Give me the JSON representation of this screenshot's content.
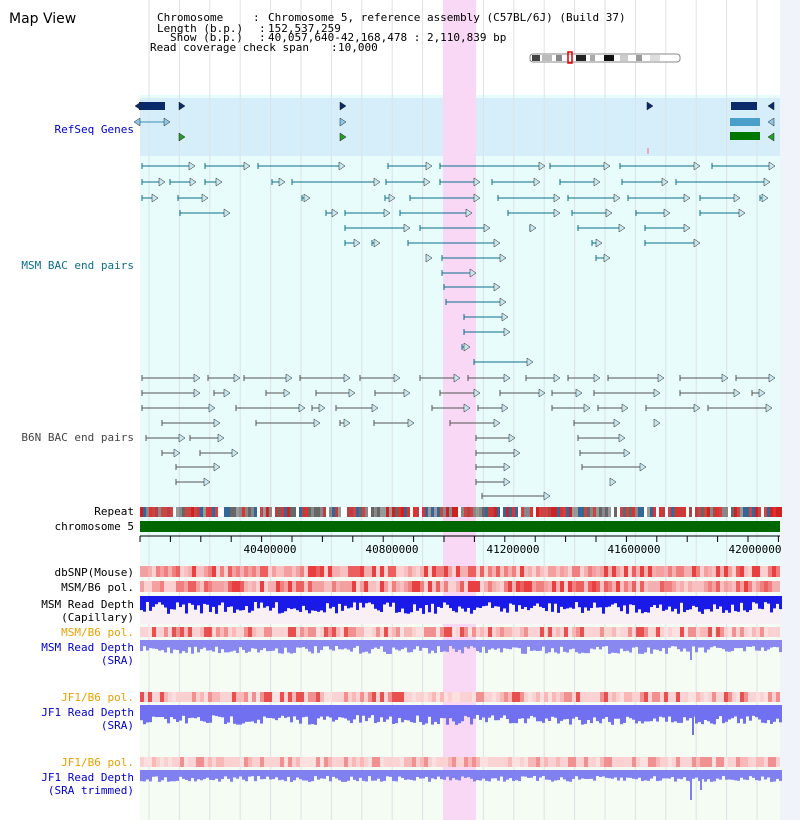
{
  "app_title": "Map View",
  "header": {
    "chromosome_key": "Chromosome",
    "chromosome_value": "Chromosome 5, reference assembly (C57BL/6J) (Build 37)",
    "length_key": "Length (b.p.)",
    "length_value": "152,537,259",
    "show_key": "Show (b.p.)",
    "show_value": "40,057,640-42,168,478 : 2,110,839 bp",
    "span_key": "Read coverage check span",
    "span_value": "10,000"
  },
  "tracks": {
    "refseq": "RefSeq Genes",
    "msm_bac": "MSM BAC end pairs",
    "b6n_bac": "B6N BAC end pairs",
    "repeat": "Repeat",
    "chromosome": "chromosome 5",
    "dbsnp": "dbSNP(Mouse)",
    "msm_b6_pol_1": "MSM/B6 pol.",
    "msm_depth_cap_1": "MSM Read Depth",
    "msm_depth_cap_2": "(Capillary)",
    "msm_b6_pol_2": "MSM/B6 pol.",
    "msm_depth_sra_1": "MSM Read Depth",
    "msm_depth_sra_2": "(SRA)",
    "jf1_b6_pol_1": "JF1/B6 pol.",
    "jf1_depth_sra_1": "JF1 Read Depth",
    "jf1_depth_sra_2": "(SRA)",
    "jf1_b6_pol_2": "JF1/B6 pol.",
    "jf1_depth_trim_1": "JF1 Read Depth",
    "jf1_depth_trim_2": "(SRA trimmed)"
  },
  "axis": {
    "ticks": [
      "40400000",
      "40800000",
      "41200000",
      "41600000",
      "42000000"
    ]
  },
  "colors": {
    "blue_label": "#0000cc",
    "teal_label": "#0b6e8a",
    "gray_label": "#444444",
    "orange_label": "#e8a000",
    "chromosome_bar": "#006600",
    "highlight": "#f8d8f4",
    "refseq_bg": "#d8f0fa",
    "cyan_bg": "#e6fcfc"
  }
}
